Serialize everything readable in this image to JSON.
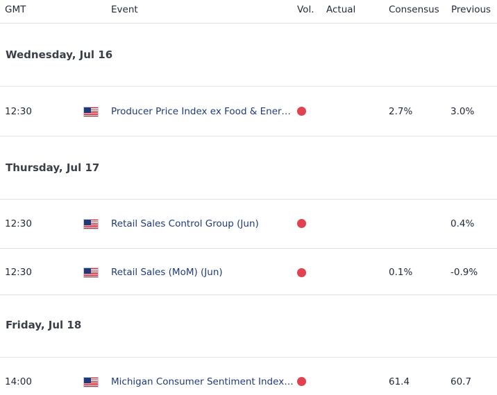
{
  "header": {
    "gmt": "GMT",
    "event": "Event",
    "vol": "Vol.",
    "actual": "Actual",
    "consensus": "Consensus",
    "previous": "Previous"
  },
  "days": [
    {
      "label": "Wednesday, Jul 16",
      "rows": [
        {
          "time": "12:30",
          "flag": "us-flag-icon",
          "event": "Producer Price Index ex Food & Energy (YoY) (Jun)",
          "vol": "high-volatility-dot",
          "actual": "",
          "consensus": "2.7%",
          "previous": "3.0%"
        }
      ]
    },
    {
      "label": "Thursday, Jul 17",
      "rows": [
        {
          "time": "12:30",
          "flag": "us-flag-icon",
          "event": "Retail Sales Control Group (Jun)",
          "vol": "high-volatility-dot",
          "actual": "",
          "consensus": "",
          "previous": "0.4%"
        },
        {
          "time": "12:30",
          "flag": "us-flag-icon",
          "event": "Retail Sales (MoM) (Jun)",
          "vol": "high-volatility-dot",
          "actual": "",
          "consensus": "0.1%",
          "previous": "-0.9%"
        }
      ]
    },
    {
      "label": "Friday, Jul 18",
      "rows": [
        {
          "time": "14:00",
          "flag": "us-flag-icon",
          "event": "Michigan Consumer Sentiment Index (Jul) PREL",
          "vol": "high-volatility-dot",
          "actual": "",
          "consensus": "61.4",
          "previous": "60.7"
        }
      ]
    }
  ],
  "colors": {
    "event_link": "#1f3a7a",
    "vol_dot": "#e0434f",
    "divider": "#dfe2e7"
  }
}
